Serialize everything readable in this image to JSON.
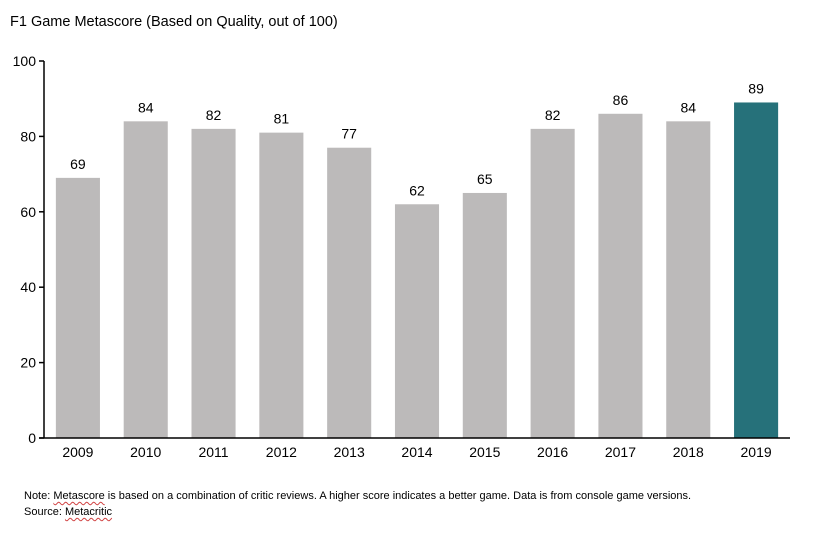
{
  "chart_data": {
    "type": "bar",
    "title": "F1 Game Metascore (Based on Quality, out of 100)",
    "categories": [
      "2009",
      "2010",
      "2011",
      "2012",
      "2013",
      "2014",
      "2015",
      "2016",
      "2017",
      "2018",
      "2019"
    ],
    "values": [
      69,
      84,
      82,
      81,
      77,
      62,
      65,
      82,
      86,
      84,
      89
    ],
    "highlight_index": 10,
    "ylim": [
      0,
      100
    ],
    "yticks": [
      0,
      20,
      40,
      60,
      80,
      100
    ],
    "xlabel": "",
    "ylabel": "",
    "grid": false,
    "colors": {
      "bar": "#bcbaba",
      "highlight": "#26717a",
      "axis": "#000000"
    }
  },
  "notes": {
    "note_prefix": "Note: ",
    "note_keyword": "Metascore",
    "note_rest": " is based on a combination of critic reviews. A higher score indicates a better game. Data is from console game versions.",
    "source_prefix": "Source: ",
    "source_name": "Metacritic"
  }
}
